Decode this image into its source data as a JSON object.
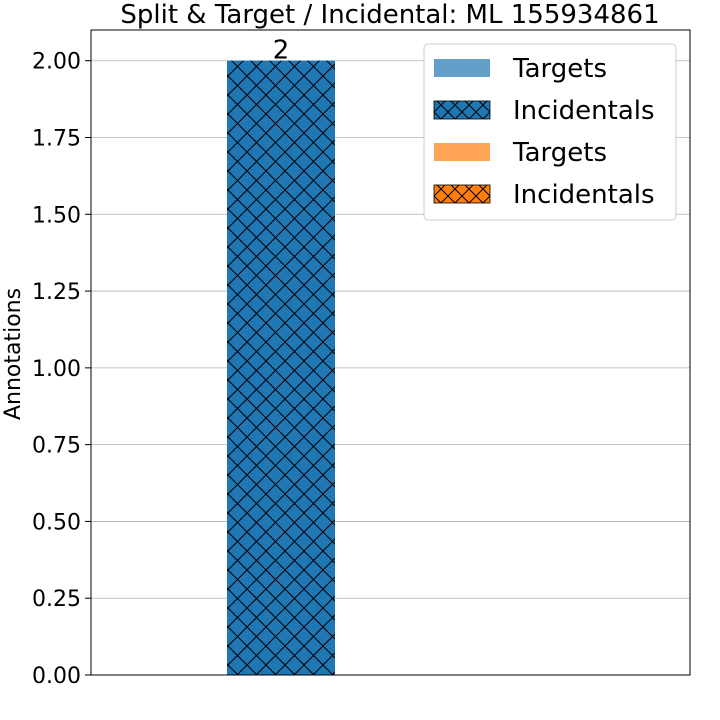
{
  "chart_data": {
    "type": "bar",
    "title": "Split & Target / Incidental: ML 155934861",
    "xlabel": "",
    "ylabel": "Annotations",
    "ylim": [
      0,
      2.1
    ],
    "yticks": [
      "0.00",
      "0.25",
      "0.50",
      "0.75",
      "1.00",
      "1.25",
      "1.50",
      "1.75",
      "2.00"
    ],
    "ytick_values": [
      0,
      0.25,
      0.5,
      0.75,
      1.0,
      1.25,
      1.5,
      1.75,
      2.0
    ],
    "grid": "horizontal",
    "legend_position": "top-right",
    "categories": [
      ""
    ],
    "series": [
      {
        "name": "Targets",
        "values": [
          0
        ],
        "color": "#1f77b4",
        "hatch": false
      },
      {
        "name": "Incidentals",
        "values": [
          2
        ],
        "color": "#1f77b4",
        "hatch": true
      },
      {
        "name": "Targets",
        "values": [
          0
        ],
        "color": "#ff7f0e",
        "hatch": false
      },
      {
        "name": "Incidentals",
        "values": [
          0
        ],
        "color": "#ff7f0e",
        "hatch": true
      }
    ],
    "data_labels": [
      {
        "series_index": 1,
        "category_index": 0,
        "text": "2"
      }
    ]
  }
}
